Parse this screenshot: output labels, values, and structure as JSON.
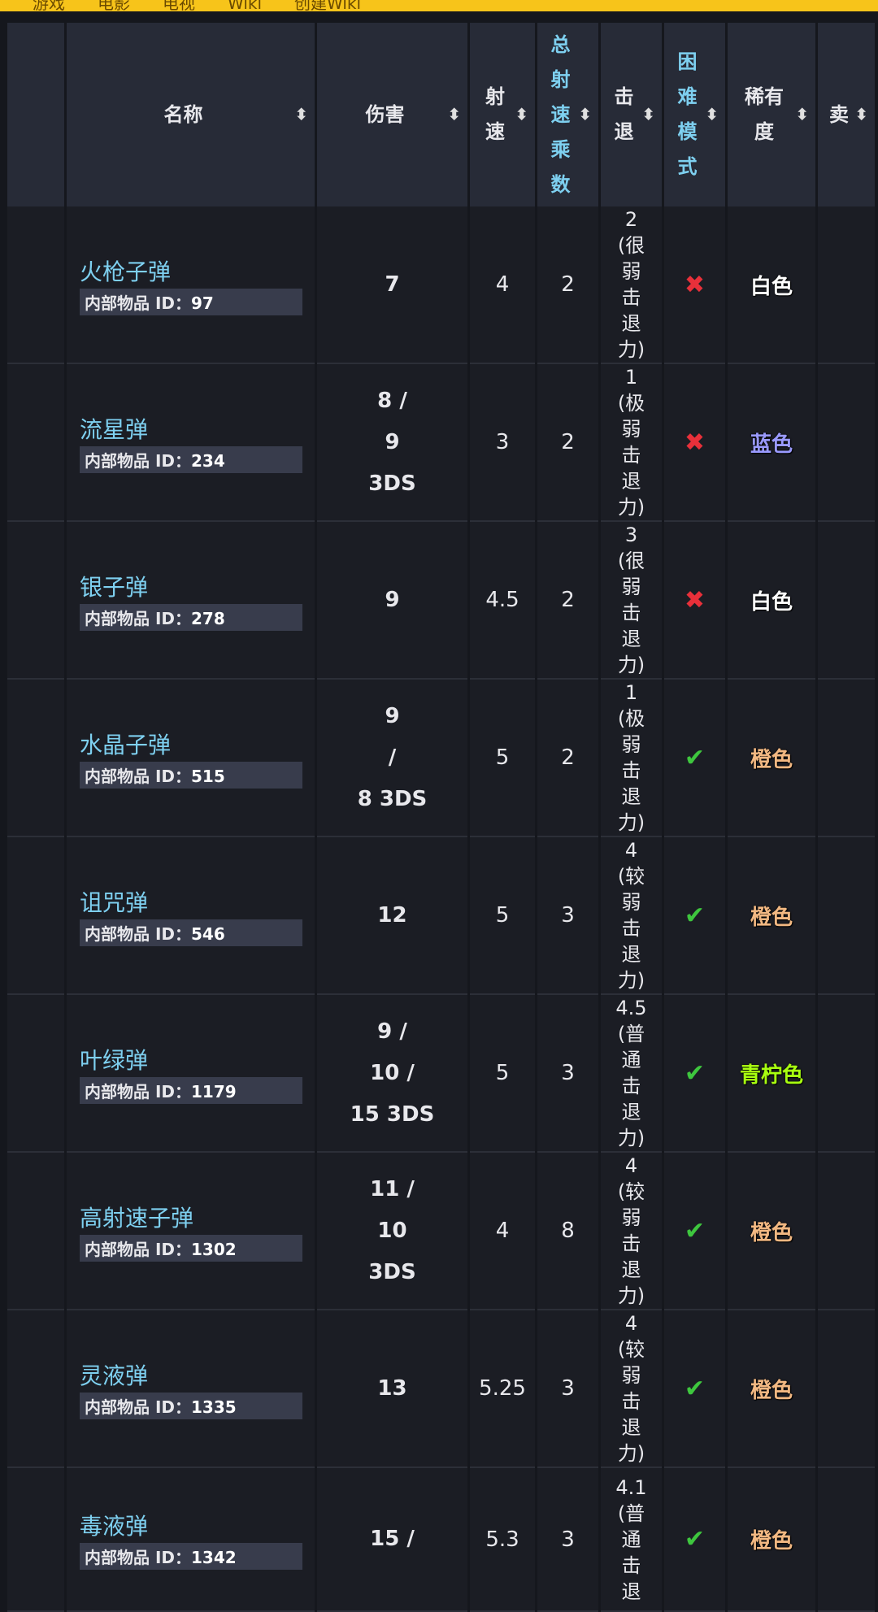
{
  "nav": {
    "items": [
      "游戏",
      "电影",
      "电视",
      "Wiki",
      "创建Wiki"
    ]
  },
  "table": {
    "headers": [
      "名称",
      "伤害",
      "射速",
      "总射速乘数",
      "击退",
      "困难模式",
      "稀有度",
      "卖"
    ],
    "id_label": "内部物品 ID：",
    "rows": [
      {
        "name": "火枪子弹",
        "id": 97,
        "damage": [
          "7"
        ],
        "use_time": 4,
        "multiplier": 2,
        "knockback": 2,
        "knockback_text": "(很弱击退力)",
        "hardmode": false,
        "rarity": "白色",
        "rarity_color": "#ffffff",
        "icon_color": "#7a6a5a"
      },
      {
        "name": "流星弹",
        "id": 234,
        "damage": [
          "8 /",
          "9",
          "3DS"
        ],
        "use_time": 3,
        "multiplier": 2,
        "knockback": 1,
        "knockback_text": "(极弱击退力)",
        "hardmode": false,
        "rarity": "蓝色",
        "rarity_color": "#9a9aff",
        "icon_color": "#a06080"
      },
      {
        "name": "银子弹",
        "id": 278,
        "damage": [
          "9"
        ],
        "use_time": 4.5,
        "multiplier": 2,
        "knockback": 3,
        "knockback_text": "(很弱击退力)",
        "hardmode": false,
        "rarity": "白色",
        "rarity_color": "#ffffff",
        "icon_color": "#e0e4f0"
      },
      {
        "name": "水晶子弹",
        "id": 515,
        "damage": [
          "9",
          "/",
          "8 3DS"
        ],
        "use_time": 5,
        "multiplier": 2,
        "knockback": 1,
        "knockback_text": "(极弱击退力)",
        "hardmode": true,
        "rarity": "橙色",
        "rarity_color": "#f2b882",
        "icon_color": "#4a6ad0"
      },
      {
        "name": "诅咒弹",
        "id": 546,
        "damage": [
          "12"
        ],
        "use_time": 5,
        "multiplier": 3,
        "knockback": 4,
        "knockback_text": "(较弱击退力)",
        "hardmode": true,
        "rarity": "橙色",
        "rarity_color": "#f2b882",
        "icon_color": "#60e020"
      },
      {
        "name": "叶绿弹",
        "id": 1179,
        "damage": [
          "9 /",
          "10 /",
          "15 3DS"
        ],
        "use_time": 5,
        "multiplier": 3,
        "knockback": 4.5,
        "knockback_text": "(普通击退力)",
        "hardmode": true,
        "rarity": "青柠色",
        "rarity_color": "#a8ff10",
        "icon_color": "#50c030"
      },
      {
        "name": "高射速子弹",
        "id": 1302,
        "damage": [
          "11 /",
          "10",
          "3DS"
        ],
        "use_time": 4,
        "multiplier": 8,
        "knockback": 4,
        "knockback_text": "(较弱击退力)",
        "hardmode": true,
        "rarity": "橙色",
        "rarity_color": "#f2b882",
        "icon_color": "#e0d080"
      },
      {
        "name": "灵液弹",
        "id": 1335,
        "damage": [
          "13"
        ],
        "use_time": 5.25,
        "multiplier": 3,
        "knockback": 4,
        "knockback_text": "(较弱击退力)",
        "hardmode": true,
        "rarity": "橙色",
        "rarity_color": "#f2b882",
        "icon_color": "#f0b020"
      },
      {
        "name": "毒液弹",
        "id": 1342,
        "damage": [
          "15 /"
        ],
        "use_time": 5.3,
        "multiplier": 3,
        "knockback": 4.1,
        "knockback_text": "(普通击退",
        "hardmode": true,
        "rarity": "橙色",
        "rarity_color": "#f2b882",
        "icon_color": "#9060c0"
      }
    ]
  }
}
